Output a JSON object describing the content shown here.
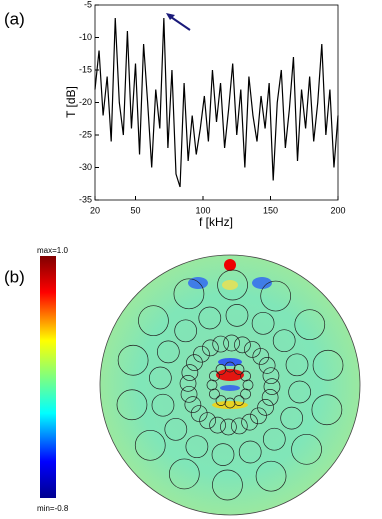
{
  "chart_data": [
    {
      "type": "line",
      "panel_label": "(a)",
      "ylabel": "T [dB]",
      "xlabel": "f [kHz]",
      "x": [
        20,
        23,
        26,
        29,
        32,
        35,
        38,
        41,
        44,
        47,
        50,
        53,
        56,
        59,
        62,
        65,
        68,
        71,
        74,
        77,
        80,
        83,
        86,
        89,
        92,
        95,
        98,
        101,
        104,
        107,
        110,
        113,
        116,
        119,
        122,
        125,
        128,
        131,
        134,
        137,
        140,
        143,
        146,
        149,
        152,
        155,
        158,
        161,
        164,
        167,
        170,
        173,
        176,
        179,
        182,
        185,
        188,
        191,
        194,
        197,
        200
      ],
      "values": [
        -18,
        -12,
        -22,
        -16,
        -26,
        -7,
        -20,
        -25,
        -9,
        -24,
        -14,
        -28,
        -11,
        -20,
        -30,
        -18,
        -24,
        -7,
        -27,
        -15,
        -31,
        -33,
        -17,
        -29,
        -22,
        -28,
        -24,
        -19,
        -26,
        -15,
        -23,
        -17,
        -27,
        -21,
        -14,
        -25,
        -18,
        -30,
        -16,
        -22,
        -26,
        -19,
        -24,
        -17,
        -32,
        -20,
        -15,
        -27,
        -21,
        -13,
        -29,
        -18,
        -24,
        -16,
        -26,
        -20,
        -11,
        -25,
        -18,
        -30,
        -22
      ],
      "color": "#000000",
      "xlim": [
        20,
        200
      ],
      "xticks": [
        20,
        50,
        100,
        150,
        200
      ],
      "ylim": [
        -35,
        -5
      ],
      "yticks": [
        -35,
        -30,
        -25,
        -20,
        -15,
        -10,
        -5
      ]
    },
    {
      "type": "field",
      "panel_label": "(b)",
      "max_label": "max=1.0",
      "min_label": "min=-0.8"
    }
  ]
}
